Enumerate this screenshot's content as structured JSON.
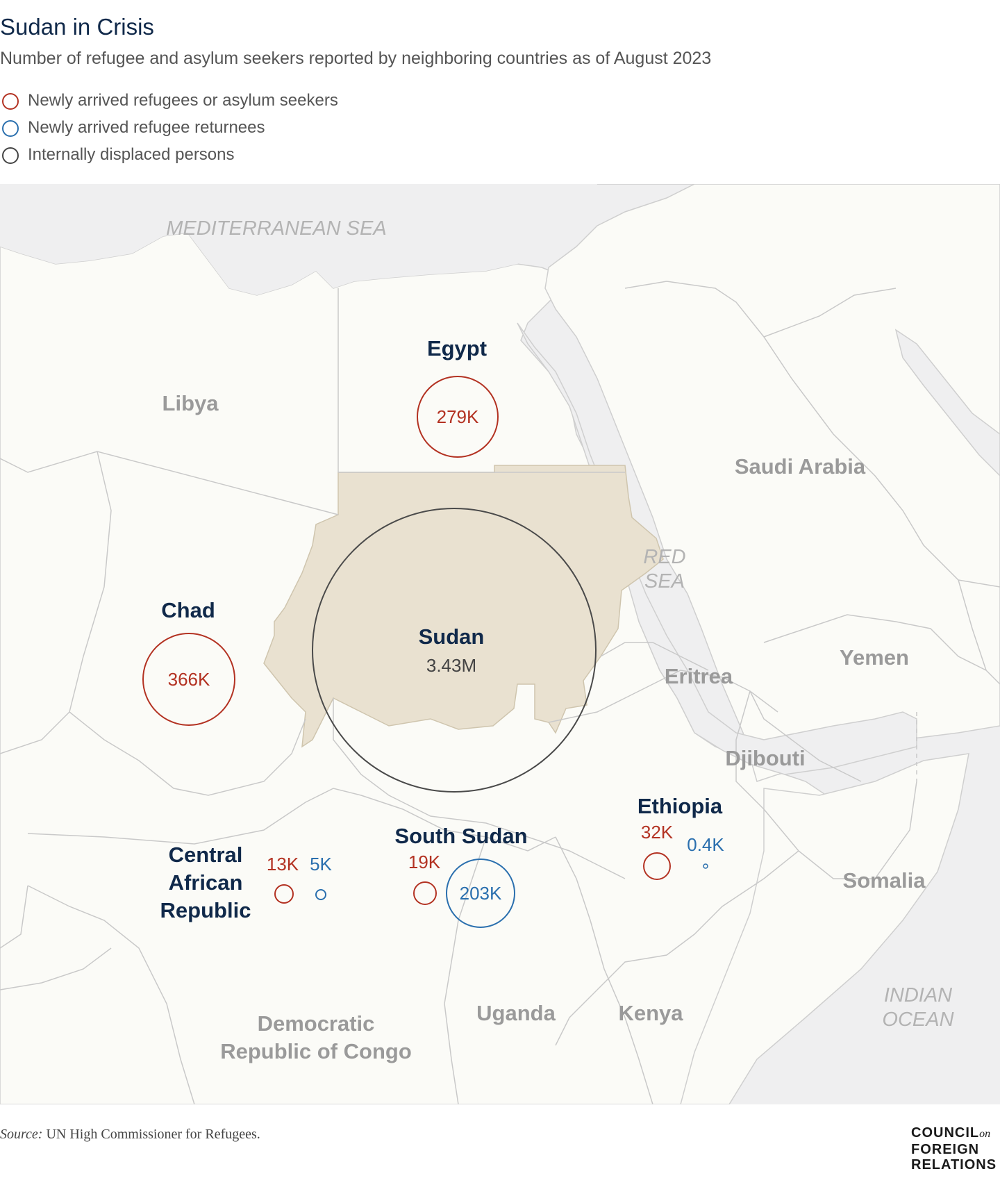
{
  "title": "Sudan in Crisis",
  "subtitle": "Number of refugee and asylum seekers reported by neighboring countries as of August 2023",
  "legend": [
    {
      "label": "Newly arrived refugees or asylum seekers",
      "color": "#b33222"
    },
    {
      "label": "Newly arrived refugee returnees",
      "color": "#2a6fae"
    },
    {
      "label": "Internally displaced persons",
      "color": "#444444"
    }
  ],
  "seas": {
    "mediterranean": "MEDITERRANEAN SEA",
    "red_sea_line1": "RED",
    "red_sea_line2": "SEA",
    "indian_ocean_line1": "INDIAN",
    "indian_ocean_line2": "OCEAN"
  },
  "context_countries": {
    "libya": "Libya",
    "saudi_arabia": "Saudi Arabia",
    "eritrea": "Eritrea",
    "yemen": "Yemen",
    "djibouti": "Djibouti",
    "somalia": "Somalia",
    "uganda": "Uganda",
    "kenya": "Kenya",
    "drc_line1": "Democratic",
    "drc_line2": "Republic of Congo"
  },
  "highlight_countries": {
    "egypt": "Egypt",
    "chad": "Chad",
    "sudan": "Sudan",
    "south_sudan": "South Sudan",
    "ethiopia": "Ethiopia",
    "car_line1": "Central",
    "car_line2": "African",
    "car_line3": "Republic"
  },
  "values": {
    "egypt_refugees": "279K",
    "chad_refugees": "366K",
    "sudan_idp": "3.43M",
    "car_refugees": "13K",
    "car_returnees": "5K",
    "south_sudan_refugees": "19K",
    "south_sudan_returnees": "203K",
    "ethiopia_refugees": "32K",
    "ethiopia_returnees": "0.4K"
  },
  "source": {
    "label": "Source:",
    "text": " UN High Commissioner for Refugees."
  },
  "logo": {
    "line1": "COUNCIL",
    "on": "on",
    "line2": "FOREIGN",
    "line3": "RELATIONS"
  },
  "colors": {
    "land": "#fbfbf7",
    "sea": "#efeff0",
    "sudan_fill": "#e9e1d0",
    "border": "#c9c9c9"
  }
}
